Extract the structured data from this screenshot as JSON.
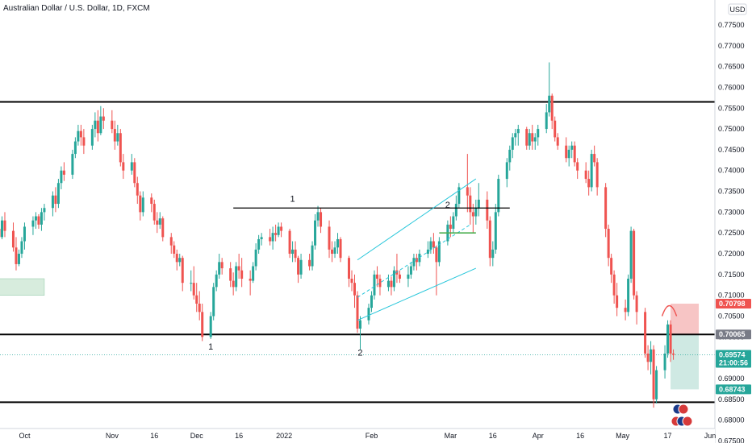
{
  "chart_data": {
    "type": "candlestick",
    "title": "Australian Dollar / U.S. Dollar, 1D, FXCM",
    "currency_badge": "USD",
    "ylim": [
      0.6745,
      0.781
    ],
    "y_ticks": [
      "0.77500",
      "0.77000",
      "0.76500",
      "0.76000",
      "0.75500",
      "0.75000",
      "0.74500",
      "0.74000",
      "0.73500",
      "0.73000",
      "0.72500",
      "0.72000",
      "0.71500",
      "0.71000",
      "0.70500",
      "0.70000",
      "0.69500",
      "0.69000",
      "0.68500",
      "0.68000",
      "0.67500"
    ],
    "x_ticks": [
      "Oct",
      "Nov",
      "16",
      "Dec",
      "16",
      "2022",
      "Feb",
      "Mar",
      "16",
      "Apr",
      "16",
      "May",
      "17",
      "Jun"
    ],
    "colors": {
      "up": "#26a69a",
      "down": "#ef5350",
      "channel": "#26c6da",
      "level": "#000000",
      "stop": "#f7c5c5",
      "target": "#cfe9e3",
      "zone": "#d7ecdd"
    },
    "horizontal_levels": [
      0.7565,
      0.7006,
      0.6843
    ],
    "neckline": {
      "start": "2021-12-14",
      "end": "2022-03-22",
      "price": 0.731
    },
    "channel_upper": [
      [
        "2022-01-27",
        0.7185
      ],
      [
        "2022-03-10",
        0.738
      ]
    ],
    "channel_lower": [
      [
        "2022-01-27",
        0.704
      ],
      [
        "2022-03-10",
        0.7165
      ]
    ],
    "channel_mid": [
      [
        "2022-01-27",
        0.7095
      ],
      [
        "2022-03-08",
        0.727
      ]
    ],
    "green_segment": {
      "start": "2022-02-25",
      "end": "2022-03-10",
      "price": 0.725
    },
    "left_zone": {
      "start": "2021-09-20",
      "end": "2021-10-08",
      "top": 0.714,
      "bottom": 0.71
    },
    "position": {
      "start": "2022-05-18",
      "end": "2022-05-28",
      "entry": 0.7006,
      "stop": 0.708,
      "target": 0.6874
    },
    "labels": [
      {
        "text": "1",
        "date": "2021-12-06",
        "price": 0.697
      },
      {
        "text": "1",
        "date": "2022-01-04",
        "price": 0.7325
      },
      {
        "text": "2",
        "date": "2022-01-28",
        "price": 0.6955
      },
      {
        "text": "2",
        "date": "2022-02-28",
        "price": 0.731
      }
    ],
    "price_tags": [
      {
        "value": "0.70798",
        "price": 0.708,
        "color": "#ef5350"
      },
      {
        "value": "0.70065",
        "price": 0.7006,
        "color": "#787b86"
      },
      {
        "value": "0.69574",
        "sub": "21:00:56",
        "price": 0.6957,
        "color": "#26a69a"
      },
      {
        "value": "0.68743",
        "price": 0.6874,
        "color": "#26a69a"
      }
    ],
    "ohlc": [
      [
        "2021-09-20",
        0.723,
        0.7262,
        0.72,
        0.724
      ],
      [
        "2021-09-21",
        0.724,
        0.7275,
        0.7225,
        0.726
      ],
      [
        "2021-09-22",
        0.726,
        0.7285,
        0.722,
        0.724
      ],
      [
        "2021-09-23",
        0.724,
        0.729,
        0.7235,
        0.728
      ],
      [
        "2021-09-24",
        0.728,
        0.73,
        0.724,
        0.7255
      ],
      [
        "2021-09-27",
        0.7255,
        0.7275,
        0.7205,
        0.7215
      ],
      [
        "2021-09-28",
        0.7215,
        0.724,
        0.716,
        0.7175
      ],
      [
        "2021-09-29",
        0.7175,
        0.721,
        0.717,
        0.72
      ],
      [
        "2021-09-30",
        0.72,
        0.724,
        0.719,
        0.723
      ],
      [
        "2021-10-01",
        0.723,
        0.7275,
        0.721,
        0.7265
      ],
      [
        "2021-10-04",
        0.7265,
        0.729,
        0.7245,
        0.728
      ],
      [
        "2021-10-05",
        0.728,
        0.73,
        0.726,
        0.729
      ],
      [
        "2021-10-06",
        0.729,
        0.7295,
        0.726,
        0.727
      ],
      [
        "2021-10-07",
        0.727,
        0.731,
        0.7255,
        0.73
      ],
      [
        "2021-10-08",
        0.73,
        0.732,
        0.728,
        0.731
      ],
      [
        "2021-10-11",
        0.731,
        0.735,
        0.729,
        0.734
      ],
      [
        "2021-10-12",
        0.734,
        0.736,
        0.73,
        0.732
      ],
      [
        "2021-10-13",
        0.732,
        0.738,
        0.731,
        0.737
      ],
      [
        "2021-10-14",
        0.737,
        0.741,
        0.7355,
        0.74
      ],
      [
        "2021-10-15",
        0.74,
        0.742,
        0.7375,
        0.739
      ],
      [
        "2021-10-18",
        0.739,
        0.745,
        0.738,
        0.744
      ],
      [
        "2021-10-19",
        0.744,
        0.748,
        0.743,
        0.747
      ],
      [
        "2021-10-20",
        0.747,
        0.751,
        0.746,
        0.7495
      ],
      [
        "2021-10-21",
        0.7495,
        0.751,
        0.746,
        0.748
      ],
      [
        "2021-10-22",
        0.748,
        0.75,
        0.744,
        0.746
      ],
      [
        "2021-10-25",
        0.746,
        0.751,
        0.745,
        0.75
      ],
      [
        "2021-10-26",
        0.75,
        0.754,
        0.748,
        0.752
      ],
      [
        "2021-10-27",
        0.752,
        0.7545,
        0.747,
        0.749
      ],
      [
        "2021-10-28",
        0.749,
        0.7555,
        0.7485,
        0.753
      ],
      [
        "2021-10-29",
        0.753,
        0.755,
        0.75,
        0.752
      ],
      [
        "2021-11-01",
        0.752,
        0.7545,
        0.749,
        0.75
      ],
      [
        "2021-11-02",
        0.75,
        0.752,
        0.745,
        0.747
      ],
      [
        "2021-11-03",
        0.747,
        0.751,
        0.746,
        0.749
      ],
      [
        "2021-11-04",
        0.749,
        0.75,
        0.741,
        0.742
      ],
      [
        "2021-11-05",
        0.742,
        0.744,
        0.738,
        0.74
      ],
      [
        "2021-11-08",
        0.74,
        0.744,
        0.739,
        0.742
      ],
      [
        "2021-11-09",
        0.742,
        0.743,
        0.736,
        0.737
      ],
      [
        "2021-11-10",
        0.737,
        0.7385,
        0.732,
        0.734
      ],
      [
        "2021-11-11",
        0.734,
        0.735,
        0.728,
        0.73
      ],
      [
        "2021-11-12",
        0.73,
        0.735,
        0.729,
        0.7335
      ],
      [
        "2021-11-15",
        0.7335,
        0.7345,
        0.73,
        0.732
      ],
      [
        "2021-11-16",
        0.732,
        0.733,
        0.727,
        0.728
      ],
      [
        "2021-11-17",
        0.728,
        0.73,
        0.725,
        0.727
      ],
      [
        "2021-11-18",
        0.727,
        0.73,
        0.726,
        0.7285
      ],
      [
        "2021-11-19",
        0.7285,
        0.729,
        0.723,
        0.724
      ],
      [
        "2021-11-22",
        0.724,
        0.725,
        0.72,
        0.722
      ],
      [
        "2021-11-23",
        0.722,
        0.723,
        0.719,
        0.72
      ],
      [
        "2021-11-24",
        0.72,
        0.721,
        0.716,
        0.718
      ],
      [
        "2021-11-25",
        0.718,
        0.72,
        0.717,
        0.719
      ],
      [
        "2021-11-26",
        0.719,
        0.7195,
        0.711,
        0.713
      ],
      [
        "2021-11-29",
        0.713,
        0.716,
        0.711,
        0.713
      ],
      [
        "2021-11-30",
        0.713,
        0.717,
        0.709,
        0.71
      ],
      [
        "2021-12-01",
        0.71,
        0.713,
        0.706,
        0.708
      ],
      [
        "2021-12-02",
        0.708,
        0.711,
        0.704,
        0.706
      ],
      [
        "2021-12-03",
        0.706,
        0.708,
        0.699,
        0.7
      ],
      [
        "2021-12-06",
        0.7,
        0.706,
        0.6995,
        0.705
      ],
      [
        "2021-12-07",
        0.705,
        0.713,
        0.704,
        0.712
      ],
      [
        "2021-12-08",
        0.712,
        0.716,
        0.711,
        0.715
      ],
      [
        "2021-12-09",
        0.715,
        0.72,
        0.714,
        0.718
      ],
      [
        "2021-12-10",
        0.718,
        0.719,
        0.715,
        0.7165
      ],
      [
        "2021-12-13",
        0.7165,
        0.718,
        0.712,
        0.7135
      ],
      [
        "2021-12-14",
        0.7135,
        0.7155,
        0.71,
        0.712
      ],
      [
        "2021-12-15",
        0.712,
        0.718,
        0.711,
        0.717
      ],
      [
        "2021-12-16",
        0.717,
        0.72,
        0.714,
        0.716
      ],
      [
        "2021-12-17",
        0.716,
        0.719,
        0.712,
        0.714
      ],
      [
        "2021-12-20",
        0.714,
        0.716,
        0.71,
        0.7135
      ],
      [
        "2021-12-21",
        0.7135,
        0.718,
        0.713,
        0.717
      ],
      [
        "2021-12-22",
        0.717,
        0.7225,
        0.716,
        0.721
      ],
      [
        "2021-12-23",
        0.721,
        0.7245,
        0.72,
        0.7235
      ],
      [
        "2021-12-24",
        0.7235,
        0.725,
        0.722,
        0.724
      ],
      [
        "2021-12-27",
        0.724,
        0.726,
        0.722,
        0.723
      ],
      [
        "2021-12-28",
        0.723,
        0.7265,
        0.721,
        0.725
      ],
      [
        "2021-12-29",
        0.725,
        0.727,
        0.723,
        0.7245
      ],
      [
        "2021-12-30",
        0.7245,
        0.7275,
        0.724,
        0.7265
      ],
      [
        "2021-12-31",
        0.7265,
        0.7275,
        0.724,
        0.7255
      ],
      [
        "2022-01-03",
        0.7255,
        0.726,
        0.719,
        0.72
      ],
      [
        "2022-01-04",
        0.72,
        0.723,
        0.718,
        0.721
      ],
      [
        "2022-01-05",
        0.721,
        0.723,
        0.718,
        0.719
      ],
      [
        "2022-01-06",
        0.719,
        0.7195,
        0.713,
        0.715
      ],
      [
        "2022-01-07",
        0.715,
        0.72,
        0.714,
        0.7185
      ],
      [
        "2022-01-10",
        0.7185,
        0.72,
        0.716,
        0.717
      ],
      [
        "2022-01-11",
        0.717,
        0.723,
        0.716,
        0.722
      ],
      [
        "2022-01-12",
        0.722,
        0.7295,
        0.721,
        0.728
      ],
      [
        "2022-01-13",
        0.728,
        0.7315,
        0.7265,
        0.73
      ],
      [
        "2022-01-14",
        0.73,
        0.731,
        0.725,
        0.7265
      ],
      [
        "2022-01-17",
        0.7265,
        0.728,
        0.719,
        0.721
      ],
      [
        "2022-01-18",
        0.721,
        0.723,
        0.718,
        0.72
      ],
      [
        "2022-01-19",
        0.72,
        0.723,
        0.719,
        0.7215
      ],
      [
        "2022-01-20",
        0.7215,
        0.725,
        0.72,
        0.7235
      ],
      [
        "2022-01-21",
        0.7235,
        0.724,
        0.718,
        0.719
      ],
      [
        "2022-01-24",
        0.719,
        0.7195,
        0.712,
        0.714
      ],
      [
        "2022-01-25",
        0.714,
        0.716,
        0.711,
        0.713
      ],
      [
        "2022-01-26",
        0.713,
        0.715,
        0.707,
        0.71
      ],
      [
        "2022-01-27",
        0.71,
        0.711,
        0.701,
        0.702
      ],
      [
        "2022-01-28",
        0.702,
        0.705,
        0.697,
        0.704
      ],
      [
        "2022-01-31",
        0.704,
        0.708,
        0.703,
        0.707
      ],
      [
        "2022-02-01",
        0.707,
        0.711,
        0.706,
        0.71
      ],
      [
        "2022-02-02",
        0.71,
        0.716,
        0.709,
        0.715
      ],
      [
        "2022-02-03",
        0.715,
        0.717,
        0.712,
        0.714
      ],
      [
        "2022-02-04",
        0.714,
        0.715,
        0.71,
        0.712
      ],
      [
        "2022-02-07",
        0.712,
        0.715,
        0.711,
        0.7135
      ],
      [
        "2022-02-08",
        0.7135,
        0.7145,
        0.71,
        0.712
      ],
      [
        "2022-02-09",
        0.712,
        0.717,
        0.711,
        0.716
      ],
      [
        "2022-02-10",
        0.716,
        0.72,
        0.713,
        0.715
      ],
      [
        "2022-02-11",
        0.715,
        0.716,
        0.713,
        0.714
      ],
      [
        "2022-02-14",
        0.714,
        0.717,
        0.712,
        0.715
      ],
      [
        "2022-02-15",
        0.715,
        0.718,
        0.714,
        0.717
      ],
      [
        "2022-02-16",
        0.717,
        0.72,
        0.716,
        0.719
      ],
      [
        "2022-02-17",
        0.719,
        0.72,
        0.716,
        0.718
      ],
      [
        "2022-02-18",
        0.718,
        0.721,
        0.717,
        0.72
      ],
      [
        "2022-02-21",
        0.72,
        0.723,
        0.719,
        0.721
      ],
      [
        "2022-02-22",
        0.721,
        0.724,
        0.72,
        0.723
      ],
      [
        "2022-02-23",
        0.723,
        0.725,
        0.72,
        0.7215
      ],
      [
        "2022-02-24",
        0.7215,
        0.722,
        0.71,
        0.718
      ],
      [
        "2022-02-25",
        0.718,
        0.724,
        0.717,
        0.723
      ],
      [
        "2022-02-28",
        0.723,
        0.728,
        0.722,
        0.727
      ],
      [
        "2022-03-01",
        0.727,
        0.729,
        0.724,
        0.726
      ],
      [
        "2022-03-02",
        0.726,
        0.73,
        0.725,
        0.729
      ],
      [
        "2022-03-03",
        0.729,
        0.734,
        0.728,
        0.732
      ],
      [
        "2022-03-04",
        0.732,
        0.737,
        0.731,
        0.736
      ],
      [
        "2022-03-07",
        0.736,
        0.744,
        0.73,
        0.734
      ],
      [
        "2022-03-08",
        0.734,
        0.736,
        0.727,
        0.73
      ],
      [
        "2022-03-09",
        0.73,
        0.732,
        0.725,
        0.729
      ],
      [
        "2022-03-10",
        0.729,
        0.733,
        0.727,
        0.731
      ],
      [
        "2022-03-11",
        0.731,
        0.737,
        0.729,
        0.733
      ],
      [
        "2022-03-14",
        0.733,
        0.735,
        0.726,
        0.728
      ],
      [
        "2022-03-15",
        0.728,
        0.729,
        0.717,
        0.719
      ],
      [
        "2022-03-16",
        0.719,
        0.723,
        0.717,
        0.721
      ],
      [
        "2022-03-17",
        0.721,
        0.732,
        0.72,
        0.73
      ],
      [
        "2022-03-18",
        0.73,
        0.739,
        0.729,
        0.738
      ],
      [
        "2022-03-21",
        0.738,
        0.743,
        0.736,
        0.742
      ],
      [
        "2022-03-22",
        0.742,
        0.746,
        0.74,
        0.745
      ],
      [
        "2022-03-23",
        0.745,
        0.749,
        0.743,
        0.748
      ],
      [
        "2022-03-24",
        0.748,
        0.75,
        0.746,
        0.749
      ],
      [
        "2022-03-25",
        0.749,
        0.751,
        0.746,
        0.75
      ],
      [
        "2022-03-28",
        0.75,
        0.7505,
        0.745,
        0.746
      ],
      [
        "2022-03-29",
        0.746,
        0.75,
        0.745,
        0.749
      ],
      [
        "2022-03-30",
        0.749,
        0.751,
        0.745,
        0.747
      ],
      [
        "2022-03-31",
        0.747,
        0.749,
        0.745,
        0.748
      ],
      [
        "2022-04-01",
        0.748,
        0.751,
        0.746,
        0.75
      ],
      [
        "2022-04-04",
        0.75,
        0.756,
        0.749,
        0.754
      ],
      [
        "2022-04-05",
        0.754,
        0.766,
        0.753,
        0.758
      ],
      [
        "2022-04-06",
        0.758,
        0.7585,
        0.75,
        0.752
      ],
      [
        "2022-04-07",
        0.752,
        0.753,
        0.747,
        0.748
      ],
      [
        "2022-04-08",
        0.748,
        0.749,
        0.745,
        0.746
      ],
      [
        "2022-04-11",
        0.746,
        0.748,
        0.742,
        0.743
      ],
      [
        "2022-04-12",
        0.743,
        0.746,
        0.741,
        0.745
      ],
      [
        "2022-04-13",
        0.745,
        0.747,
        0.743,
        0.746
      ],
      [
        "2022-04-14",
        0.746,
        0.747,
        0.741,
        0.742
      ],
      [
        "2022-04-15",
        0.742,
        0.743,
        0.738,
        0.74
      ],
      [
        "2022-04-18",
        0.74,
        0.742,
        0.737,
        0.738
      ],
      [
        "2022-04-19",
        0.738,
        0.74,
        0.734,
        0.736
      ],
      [
        "2022-04-20",
        0.736,
        0.745,
        0.735,
        0.744
      ],
      [
        "2022-04-21",
        0.744,
        0.746,
        0.741,
        0.742
      ],
      [
        "2022-04-22",
        0.742,
        0.743,
        0.734,
        0.736
      ],
      [
        "2022-04-25",
        0.736,
        0.737,
        0.724,
        0.726
      ],
      [
        "2022-04-26",
        0.726,
        0.727,
        0.717,
        0.719
      ],
      [
        "2022-04-27",
        0.719,
        0.72,
        0.713,
        0.715
      ],
      [
        "2022-04-28",
        0.715,
        0.716,
        0.708,
        0.71
      ],
      [
        "2022-04-29",
        0.71,
        0.713,
        0.705,
        0.707
      ],
      [
        "2022-05-02",
        0.707,
        0.709,
        0.704,
        0.706
      ],
      [
        "2022-05-03",
        0.706,
        0.715,
        0.705,
        0.714
      ],
      [
        "2022-05-04",
        0.714,
        0.7265,
        0.713,
        0.7255
      ],
      [
        "2022-05-05",
        0.7255,
        0.726,
        0.709,
        0.71
      ],
      [
        "2022-05-06",
        0.71,
        0.711,
        0.703,
        0.706
      ],
      [
        "2022-05-09",
        0.706,
        0.707,
        0.695,
        0.696
      ],
      [
        "2022-05-10",
        0.696,
        0.698,
        0.692,
        0.694
      ],
      [
        "2022-05-11",
        0.694,
        0.699,
        0.691,
        0.697
      ],
      [
        "2022-05-12",
        0.697,
        0.698,
        0.683,
        0.685
      ],
      [
        "2022-05-13",
        0.685,
        0.693,
        0.684,
        0.692
      ],
      [
        "2022-05-16",
        0.692,
        0.698,
        0.69,
        0.696
      ],
      [
        "2022-05-17",
        0.696,
        0.704,
        0.695,
        0.703
      ],
      [
        "2022-05-18",
        0.703,
        0.704,
        0.694,
        0.696
      ],
      [
        "2022-05-19",
        0.696,
        0.697,
        0.6945,
        0.6957
      ]
    ]
  }
}
